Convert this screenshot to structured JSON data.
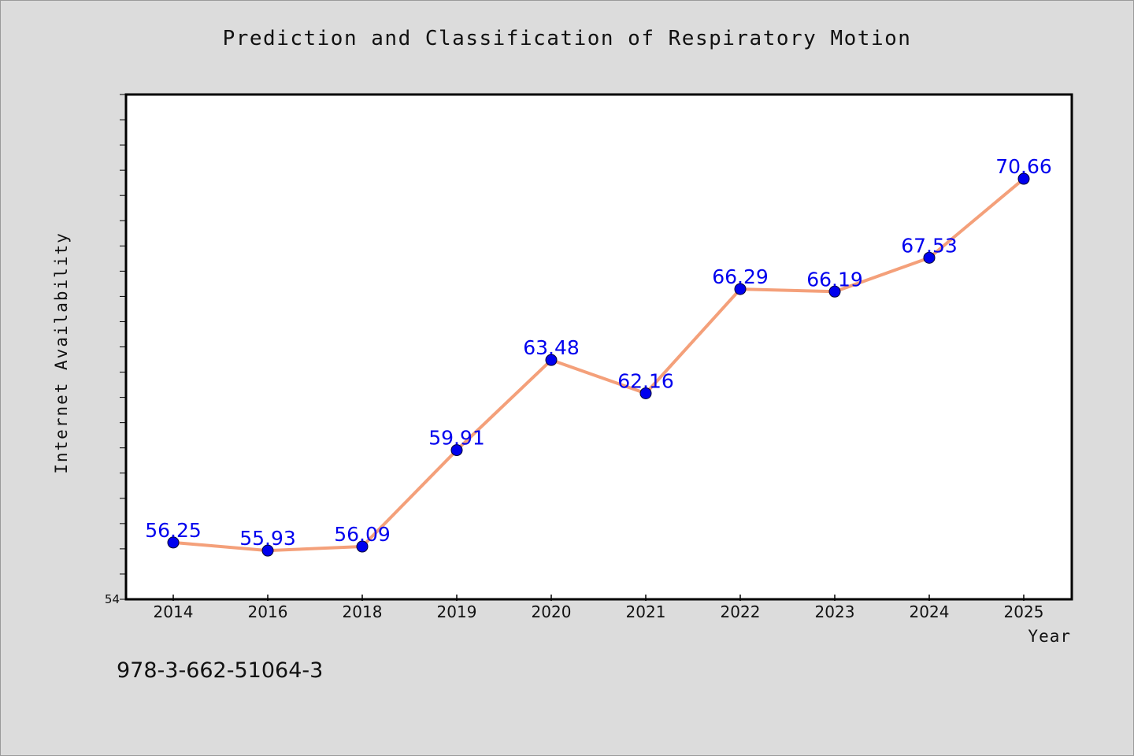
{
  "chart_data": {
    "type": "line",
    "title": "Prediction and Classification of Respiratory Motion",
    "xlabel": "Year",
    "ylabel": "Internet Availability",
    "categories": [
      "2014",
      "2016",
      "2018",
      "2019",
      "2020",
      "2021",
      "2022",
      "2023",
      "2024",
      "2025"
    ],
    "series": [
      {
        "values": [
          56.25,
          55.93,
          56.09,
          59.91,
          63.48,
          62.16,
          66.29,
          66.19,
          67.53,
          70.66
        ],
        "labels": [
          "56.25",
          "55.93",
          "56.09",
          "59.91",
          "63.48",
          "62.16",
          "66.29",
          "66.19",
          "67.53",
          "70.66"
        ],
        "line_color": "#f4a07a",
        "marker_color": "#0000ee",
        "label_color": "#0000ee"
      }
    ],
    "ylim": [
      54,
      74
    ],
    "y_major_tick_labels": [
      "54"
    ],
    "grid": false,
    "legend": "none"
  },
  "footer": {
    "code": "978-3-662-51064-3"
  },
  "colors": {
    "background": "#dcdcdc",
    "plot_background": "#ffffff",
    "axis": "#000000"
  }
}
